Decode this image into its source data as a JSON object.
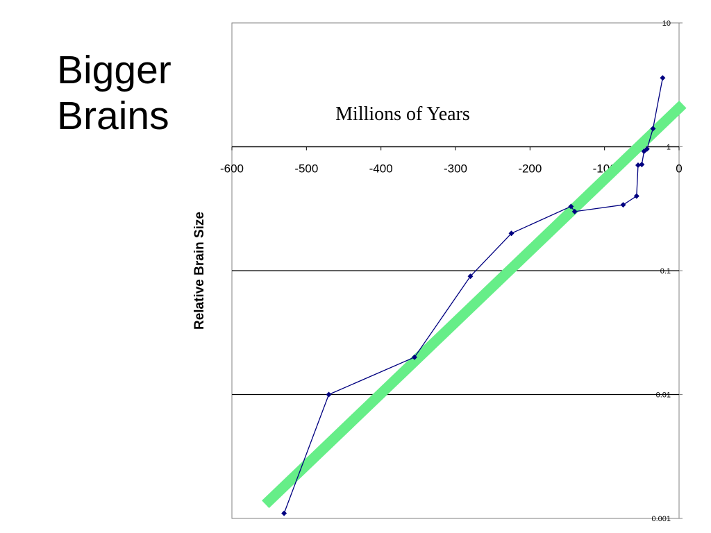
{
  "slide": {
    "title_line1": "Bigger",
    "title_line2": "Brains"
  },
  "chart_data": {
    "type": "scatter",
    "title": "",
    "xlabel": "",
    "ylabel": "Relative Brain Size",
    "annotation": "Millions of Years",
    "x_axis_crosses_y_at": 1,
    "xlim": [
      -600,
      0
    ],
    "ylim": [
      0.001,
      10
    ],
    "y_scale": "log",
    "x_ticks": [
      -600,
      -500,
      -400,
      -300,
      -200,
      -100,
      0
    ],
    "x_tick_labels": [
      "-600",
      "-500",
      "-400",
      "-300",
      "-200",
      "-100",
      "0"
    ],
    "y_ticks": [
      0.001,
      0.01,
      0.1,
      1,
      10
    ],
    "y_tick_labels": [
      "0.001",
      "0.01",
      "0.1",
      "1",
      "10"
    ],
    "gridlines": "horizontal at y ticks",
    "series": [
      {
        "color": "#000080",
        "marker": "diamond",
        "line": true,
        "points": [
          {
            "x": -530,
            "y": 0.0011
          },
          {
            "x": -470,
            "y": 0.01
          },
          {
            "x": -355,
            "y": 0.02
          },
          {
            "x": -280,
            "y": 0.09
          },
          {
            "x": -225,
            "y": 0.2
          },
          {
            "x": -145,
            "y": 0.33
          },
          {
            "x": -140,
            "y": 0.3
          },
          {
            "x": -75,
            "y": 0.34
          },
          {
            "x": -57,
            "y": 0.4
          },
          {
            "x": -55,
            "y": 0.71
          },
          {
            "x": -50,
            "y": 0.72
          },
          {
            "x": -47,
            "y": 0.92
          },
          {
            "x": -43,
            "y": 0.96
          },
          {
            "x": -35,
            "y": 1.4
          },
          {
            "x": -22,
            "y": 3.6
          }
        ]
      }
    ],
    "trend_line": {
      "color": "#66EE88",
      "points": [
        {
          "x": -555,
          "y": 0.0013
        },
        {
          "x": 5,
          "y": 2.2
        }
      ]
    }
  }
}
